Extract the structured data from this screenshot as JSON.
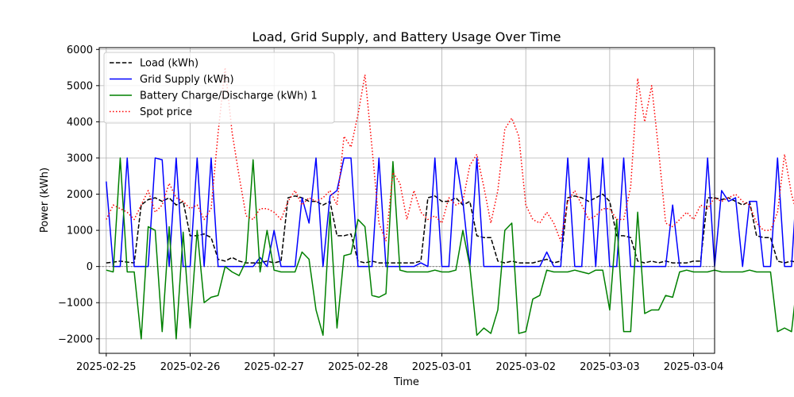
{
  "chart_data": {
    "type": "line",
    "title": "Load, Grid Supply, and Battery Usage Over Time",
    "xlabel": "Time",
    "ylabel": "Power (kWh)",
    "x_start": "2025-02-25",
    "x_step_hours": 2,
    "xlim": [
      "2025-02-24 22:00",
      "2025-03-04 06:00"
    ],
    "ylim": [
      -2400,
      6050
    ],
    "x_ticks": [
      "2025-02-25",
      "2025-02-26",
      "2025-02-27",
      "2025-02-28",
      "2025-03-01",
      "2025-03-02",
      "2025-03-03",
      "2025-03-04"
    ],
    "y_ticks": [
      -2000,
      -1000,
      0,
      1000,
      2000,
      3000,
      4000,
      5000,
      6000
    ],
    "grid": true,
    "legend_position": "top-left",
    "zero_line": {
      "y": 0,
      "color": "#808080",
      "style": "dotted"
    },
    "series": [
      {
        "name": "Load (kWh)",
        "color": "#000000",
        "style": "dashed",
        "values": [
          100,
          120,
          150,
          120,
          100,
          1700,
          1850,
          1900,
          1800,
          1900,
          1700,
          1800,
          850,
          850,
          900,
          800,
          200,
          150,
          250,
          150,
          100,
          100,
          100,
          150,
          100,
          150,
          1900,
          1950,
          1900,
          1800,
          1800,
          1700,
          1800,
          850,
          850,
          900,
          150,
          100,
          150,
          100,
          100,
          100,
          100,
          100,
          100,
          150,
          1900,
          1950,
          1800,
          1800,
          1900,
          1700,
          1800,
          850,
          800,
          800,
          150,
          100,
          150,
          100,
          100,
          100,
          150,
          200,
          100,
          150,
          1900,
          1950,
          1900,
          1800,
          1900,
          2000,
          1800,
          850,
          850,
          800,
          150,
          100,
          150,
          100,
          150,
          100,
          100,
          100,
          150,
          150,
          1900,
          1900,
          1850,
          1900,
          1800,
          1700,
          1800,
          850,
          800,
          800,
          150,
          100,
          150,
          100,
          100,
          100,
          100,
          150,
          150,
          150,
          1900,
          1950,
          1900,
          1800,
          1800,
          1700,
          1800,
          850,
          800,
          900,
          150,
          100,
          150,
          100,
          100,
          150,
          100,
          150,
          150,
          100,
          1900,
          1950,
          1900,
          1800,
          1800,
          1700,
          1800,
          850,
          800,
          800,
          150,
          100,
          150,
          100,
          100,
          100,
          100,
          150,
          150,
          150,
          1900,
          1950,
          1800,
          1800,
          2000,
          1800,
          1850,
          850,
          800,
          800,
          150,
          100,
          150,
          100,
          100,
          100,
          150,
          150,
          150,
          150,
          1900,
          1950,
          1900,
          1800,
          1800,
          1700,
          1800,
          850,
          800,
          800,
          150,
          100,
          100,
          100
        ]
      },
      {
        "name": "Grid Supply (kWh)",
        "color": "#0000ff",
        "style": "solid",
        "values": [
          2350,
          0,
          0,
          3000,
          0,
          0,
          0,
          3000,
          2950,
          0,
          3000,
          0,
          0,
          3000,
          0,
          3000,
          0,
          0,
          0,
          0,
          0,
          0,
          250,
          0,
          1000,
          0,
          0,
          0,
          1900,
          1200,
          3000,
          0,
          1950,
          2100,
          3000,
          3000,
          0,
          0,
          0,
          3000,
          0,
          0,
          0,
          0,
          0,
          100,
          0,
          3000,
          0,
          0,
          3000,
          1800,
          0,
          3000,
          0,
          0,
          0,
          0,
          0,
          0,
          0,
          0,
          0,
          400,
          0,
          0,
          3000,
          0,
          0,
          3000,
          0,
          3000,
          0,
          0,
          3000,
          0,
          0,
          0,
          0,
          0,
          0,
          1700,
          0,
          0,
          0,
          0,
          3000,
          0,
          2100,
          1800,
          1900,
          0,
          1800,
          1800,
          0,
          0,
          3000,
          0,
          0,
          3000,
          3000,
          3000,
          0,
          0,
          0,
          300,
          0,
          0,
          0,
          0,
          0,
          0,
          0,
          1950,
          1900,
          1850,
          1900,
          2000,
          1900,
          1600,
          0,
          0,
          1800,
          0,
          0,
          0,
          0,
          0,
          0,
          0,
          3000,
          0,
          0,
          3000,
          0,
          3000,
          1900,
          0,
          0,
          0,
          0,
          2100,
          1900,
          1900,
          2050,
          1900,
          2050,
          2100,
          3000,
          3000,
          3000,
          0,
          0,
          1800,
          0,
          0,
          0,
          0,
          0,
          0,
          0,
          3000,
          0,
          3000,
          0,
          3000,
          0,
          0,
          0,
          0,
          0,
          0,
          0,
          0,
          500,
          0,
          0,
          0,
          0,
          0,
          0,
          0,
          0,
          0
        ]
      },
      {
        "name": "Battery Charge/Discharge (kWh) 1",
        "color": "#008000",
        "style": "solid",
        "values": [
          -100,
          -150,
          3000,
          -150,
          -150,
          -2000,
          1100,
          1000,
          -1800,
          1100,
          -2000,
          950,
          -1700,
          1000,
          -1000,
          -850,
          -800,
          0,
          -150,
          -250,
          150,
          2950,
          -150,
          1000,
          -100,
          -150,
          -150,
          -150,
          400,
          200,
          -1200,
          -1900,
          1500,
          -1700,
          300,
          350,
          1300,
          1100,
          -800,
          -850,
          -750,
          2900,
          -100,
          -150,
          -150,
          -150,
          -150,
          -100,
          -150,
          -150,
          -100,
          1000,
          0,
          -1900,
          -1700,
          -1850,
          -1200,
          1000,
          1200,
          -1850,
          -1800,
          -900,
          -800,
          -100,
          -150,
          -150,
          -150,
          -100,
          -150,
          -200,
          -100,
          -100,
          -1200,
          1300,
          -1800,
          -1800,
          1500,
          -1300,
          -1200,
          -1200,
          -800,
          -850,
          -150,
          -100,
          -150,
          -150,
          -150,
          -100,
          -150,
          -150,
          -150,
          -150,
          -100,
          -150,
          -150,
          -150,
          -1800,
          -1700,
          -1800,
          -100,
          -150,
          1900,
          -100,
          -900,
          -850,
          -150,
          -150,
          1100,
          1300,
          -1850,
          -1800,
          0,
          2900,
          0,
          -900,
          -800,
          -100,
          -150,
          -150,
          -100,
          1000,
          0,
          -1800,
          -1700,
          -1800,
          -150,
          -150,
          1100,
          1200,
          -1800,
          -900,
          -850,
          -150,
          -100,
          -150,
          -150,
          -150,
          -100,
          -100,
          -150,
          -150,
          -150,
          -150,
          -100,
          -150,
          -100,
          -150,
          -150,
          -100,
          -150,
          -150,
          -100,
          1000,
          0,
          -2000,
          -1850,
          -1900,
          1000,
          900,
          1100,
          -1700,
          -900,
          -850,
          -100,
          -150,
          -150,
          -100,
          -150,
          -150,
          -100,
          -150,
          -150,
          -150,
          -100,
          -150,
          -150,
          -150,
          -150,
          -100,
          -150,
          -150,
          -100,
          -150,
          -150,
          -150,
          -100,
          -150
        ]
      },
      {
        "name": "Spot price",
        "color": "#ff0000",
        "style": "dotted",
        "values": [
          1300,
          1700,
          1600,
          1500,
          1300,
          1700,
          2100,
          1500,
          1700,
          2300,
          1900,
          1800,
          1600,
          1700,
          1300,
          1600,
          3700,
          5500,
          3700,
          2500,
          1400,
          1300,
          1600,
          1600,
          1500,
          1300,
          1800,
          2100,
          1700,
          1900,
          1800,
          1900,
          2100,
          1700,
          3600,
          3300,
          4200,
          5300,
          3300,
          1200,
          700,
          2600,
          2300,
          1300,
          2100,
          1500,
          1300,
          1400,
          1200,
          1900,
          1700,
          1800,
          2800,
          3100,
          2200,
          1200,
          2100,
          3800,
          4100,
          3600,
          1700,
          1300,
          1200,
          1500,
          1200,
          700,
          1800,
          2100,
          1700,
          1300,
          1400,
          1600,
          1600,
          1300,
          1300,
          2200,
          5200,
          4000,
          5000,
          3200,
          1200,
          1100,
          1300,
          1500,
          1300,
          1700,
          1600,
          1900,
          1800,
          1900,
          2000,
          1800,
          1700,
          1200,
          1000,
          1000,
          1500,
          3100,
          2000,
          1300,
          1800,
          2000,
          3000,
          4500,
          4000,
          1900,
          1200,
          800,
          1200,
          1500,
          1300,
          1100,
          1300,
          1700,
          1400,
          1200,
          1500,
          1600,
          1400,
          1500,
          1900,
          1700,
          1300,
          2600,
          2700,
          2000,
          2100,
          1800,
          1900,
          2300,
          4800,
          4600,
          4800,
          2100,
          1100,
          1200,
          1300,
          1200,
          1100,
          1200,
          1400,
          1600,
          1500,
          1300,
          800,
          1500,
          1700,
          2300,
          1700,
          2400,
          2300,
          1700,
          1500,
          1500,
          1700,
          2000,
          4000,
          5000,
          4500,
          3000,
          1300,
          1000,
          1100,
          1300,
          1500,
          1100,
          1300,
          1500,
          1300,
          1200,
          1100,
          1200,
          1300,
          1700,
          1600,
          1900,
          1300,
          1600,
          1500,
          1600,
          1600,
          1300,
          1400,
          1600
        ]
      }
    ]
  }
}
